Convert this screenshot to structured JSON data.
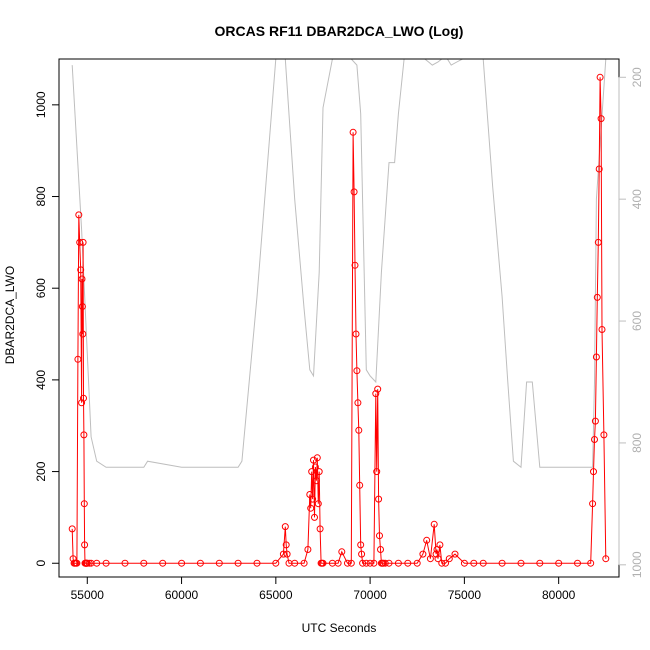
{
  "chart_data": {
    "type": "line",
    "title": "ORCAS RF11 DBAR2DCA_LWO (Log)",
    "xlabel": "UTC Seconds",
    "ylabel": "DBAR2DCA_LWO",
    "xlim": [
      53500,
      83200
    ],
    "ylim": [
      -30,
      1100
    ],
    "y2lim": [
      1020,
      170
    ],
    "x_ticks": [
      "55000",
      "60000",
      "65000",
      "70000",
      "75000",
      "80000"
    ],
    "y_ticks": [
      "0",
      "200",
      "400",
      "600",
      "800",
      "1000"
    ],
    "y2_ticks": [
      "200",
      "400",
      "600",
      "800",
      "1000"
    ],
    "grid": false,
    "colors": {
      "primary": "#ff0000",
      "secondary": "#bebebe"
    },
    "series": [
      {
        "axis": "left",
        "marker": "open-circle",
        "x": [
          54200,
          54250,
          54300,
          54350,
          54400,
          54450,
          54500,
          54550,
          54600,
          54650,
          54700,
          54720,
          54740,
          54760,
          54780,
          54800,
          54820,
          54840,
          54860,
          54880,
          54900,
          54920,
          54940,
          54960,
          54980,
          55000,
          55100,
          55200,
          55500,
          56000,
          57000,
          58000,
          59000,
          60000,
          61000,
          62000,
          63000,
          64000,
          65000,
          65400,
          65500,
          65550,
          65600,
          65700,
          66000,
          66500,
          66700,
          66800,
          66850,
          66900,
          66950,
          67000,
          67050,
          67100,
          67150,
          67200,
          67250,
          67300,
          67350,
          67400,
          67450,
          67500,
          68000,
          68300,
          68500,
          68800,
          69000,
          69100,
          69150,
          69200,
          69250,
          69300,
          69350,
          69400,
          69450,
          69500,
          69550,
          69600,
          69800,
          70000,
          70200,
          70300,
          70350,
          70400,
          70450,
          70500,
          70550,
          70600,
          70650,
          70700,
          70800,
          71000,
          71500,
          72000,
          72500,
          72800,
          73000,
          73200,
          73400,
          73500,
          73550,
          73600,
          73700,
          73800,
          74000,
          74200,
          74500,
          75000,
          75500,
          76000,
          77000,
          78000,
          79000,
          80000,
          81000,
          81700,
          81800,
          81850,
          81900,
          81950,
          82000,
          82050,
          82100,
          82150,
          82200,
          82250,
          82300,
          82400,
          82500
        ],
        "values": [
          75,
          10,
          0,
          0,
          0,
          0,
          445,
          760,
          700,
          640,
          350,
          620,
          560,
          500,
          700,
          360,
          280,
          130,
          40,
          0,
          0,
          0,
          0,
          0,
          0,
          0,
          0,
          0,
          0,
          0,
          0,
          0,
          0,
          0,
          0,
          0,
          0,
          0,
          0,
          20,
          80,
          40,
          20,
          0,
          0,
          0,
          30,
          150,
          120,
          200,
          140,
          225,
          100,
          210,
          180,
          230,
          130,
          200,
          75,
          0,
          0,
          0,
          0,
          0,
          25,
          0,
          0,
          940,
          810,
          650,
          500,
          420,
          350,
          290,
          170,
          40,
          20,
          0,
          0,
          0,
          0,
          370,
          200,
          380,
          140,
          60,
          30,
          0,
          0,
          0,
          0,
          0,
          0,
          0,
          0,
          20,
          50,
          10,
          85,
          20,
          30,
          10,
          40,
          0,
          0,
          10,
          20,
          0,
          0,
          0,
          0,
          0,
          0,
          0,
          0,
          0,
          130,
          200,
          270,
          310,
          450,
          580,
          700,
          860,
          1060,
          970,
          510,
          280,
          10
        ]
      },
      {
        "axis": "right",
        "x": [
          54200,
          54700,
          55200,
          55500,
          56000,
          58000,
          58200,
          60000,
          63000,
          63200,
          64000,
          65000,
          65500,
          66000,
          66500,
          66800,
          67000,
          67300,
          67500,
          68000,
          68500,
          69000,
          69300,
          69500,
          69800,
          70000,
          70300,
          70600,
          71000,
          71300,
          71500,
          71800,
          72000,
          72300,
          72600,
          72900,
          73100,
          73300,
          73600,
          74000,
          74300,
          74600,
          74900,
          75200,
          75500,
          76000,
          76500,
          77000,
          77300,
          77600,
          78000,
          78300,
          78600,
          79000,
          79600,
          80000,
          81000,
          81800,
          81900,
          82000,
          82500
        ],
        "values": [
          180,
          450,
          790,
          830,
          840,
          840,
          830,
          840,
          840,
          830,
          560,
          170,
          170,
          400,
          580,
          680,
          690,
          520,
          250,
          170,
          170,
          170,
          180,
          260,
          680,
          690,
          700,
          520,
          340,
          340,
          260,
          170,
          170,
          170,
          170,
          170,
          175,
          180,
          175,
          165,
          180,
          175,
          170,
          170,
          170,
          170,
          380,
          560,
          700,
          830,
          840,
          700,
          700,
          840,
          840,
          840,
          840,
          840,
          700,
          400,
          170
        ]
      }
    ]
  }
}
